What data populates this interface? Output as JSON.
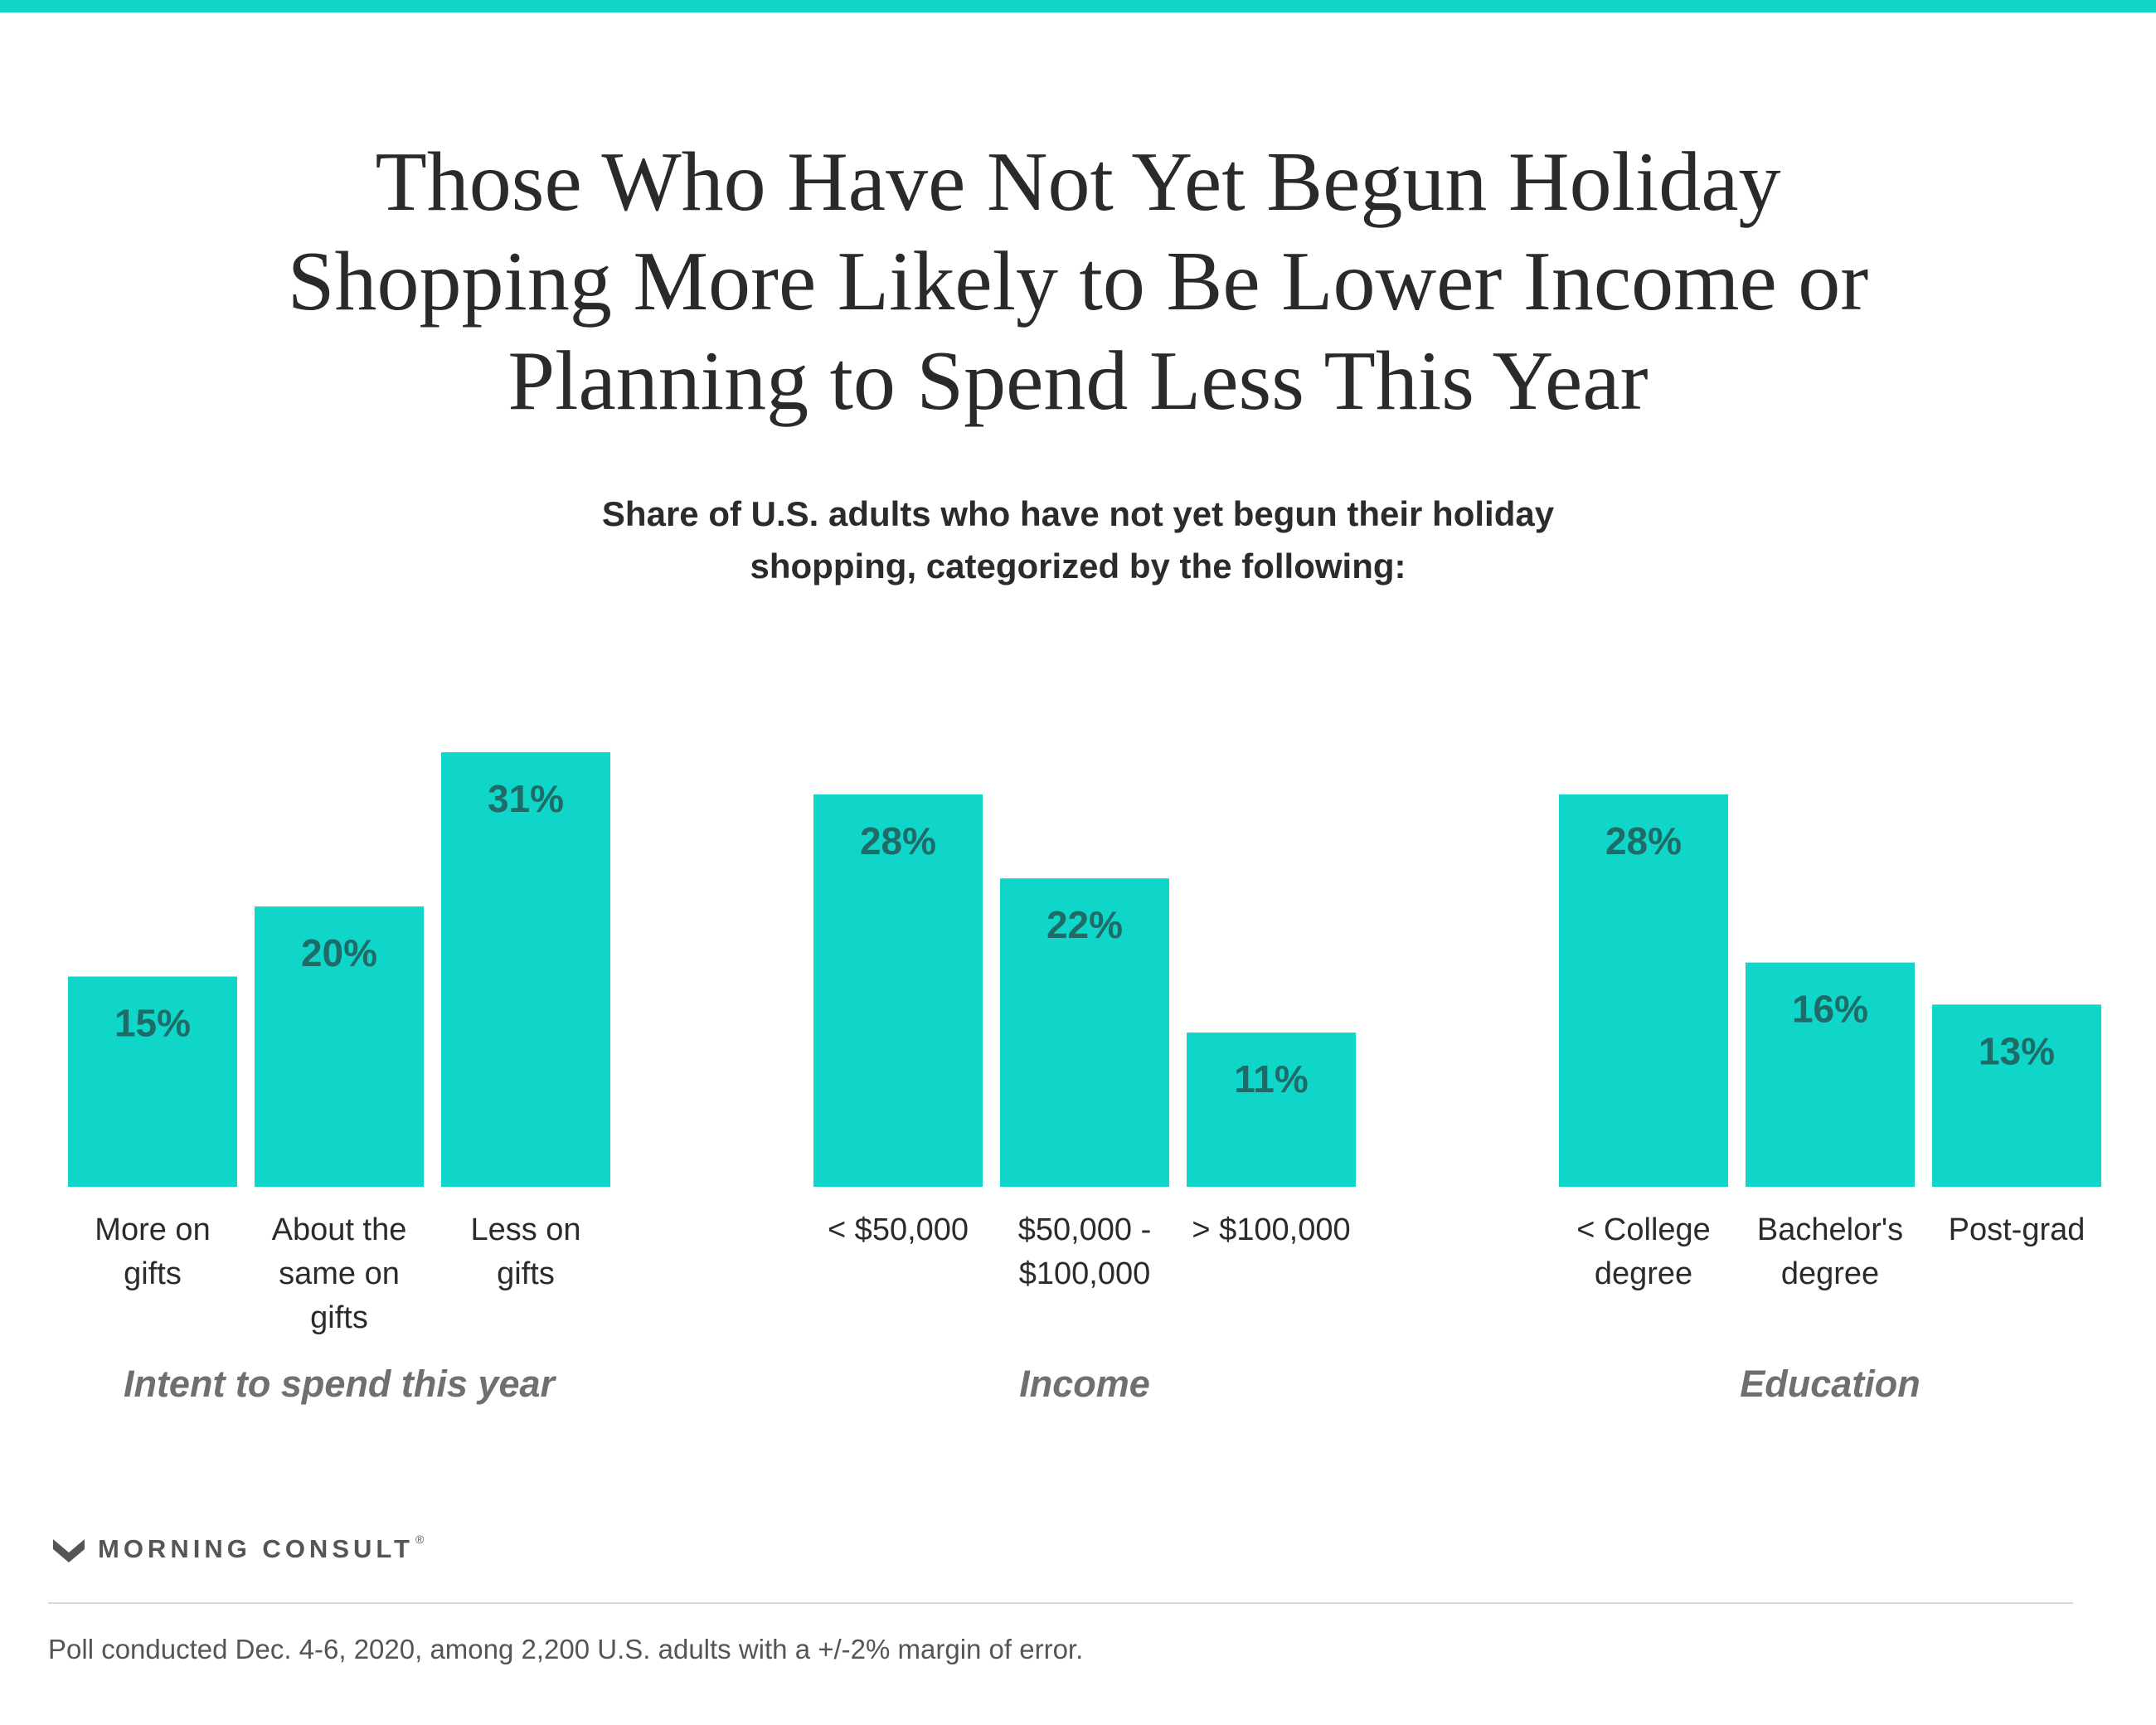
{
  "header": {
    "title": "Those Who Have Not Yet Begun Holiday\nShopping More Likely to Be Lower Income or\nPlanning to Spend Less This Year",
    "subtitle": "Share of U.S. adults who have not yet begun their holiday\nshopping, categorized by the following:"
  },
  "chart_data": {
    "type": "bar",
    "title": "Those Who Have Not Yet Begun Holiday Shopping More Likely to Be Lower Income or Planning to Spend Less This Year",
    "subtitle": "Share of U.S. adults who have not yet begun their holiday shopping, categorized by the following:",
    "unit": "%",
    "ylim": [
      0,
      35
    ],
    "grid": false,
    "bar_color": "#10d6c9",
    "value_label_color": "#1f6b68",
    "groups": [
      {
        "name": "Intent to spend this year",
        "categories": [
          [
            "More on",
            "gifts"
          ],
          [
            "About the",
            "same on",
            "gifts"
          ],
          [
            "Less on",
            "gifts"
          ]
        ],
        "values": [
          15,
          20,
          31
        ],
        "value_labels": [
          "15%",
          "20%",
          "31%"
        ]
      },
      {
        "name": "Income",
        "categories": [
          [
            "< $50,000"
          ],
          [
            "$50,000 -",
            "$100,000"
          ],
          [
            "> $100,000"
          ]
        ],
        "values": [
          28,
          22,
          11
        ],
        "value_labels": [
          "28%",
          "22%",
          "11%"
        ]
      },
      {
        "name": "Education",
        "categories": [
          [
            "< College",
            "degree"
          ],
          [
            "Bachelor's",
            "degree"
          ],
          [
            "Post-grad"
          ]
        ],
        "values": [
          28,
          16,
          13
        ],
        "value_labels": [
          "28%",
          "16%",
          "13%"
        ]
      }
    ]
  },
  "footer": {
    "brand": "MORNING CONSULT",
    "brand_mark": "registered-mark",
    "logo_icon": "morning-consult-m-logo-icon",
    "note": "Poll conducted Dec. 4-6, 2020, among 2,200 U.S. adults with a +/-2% margin of error."
  }
}
